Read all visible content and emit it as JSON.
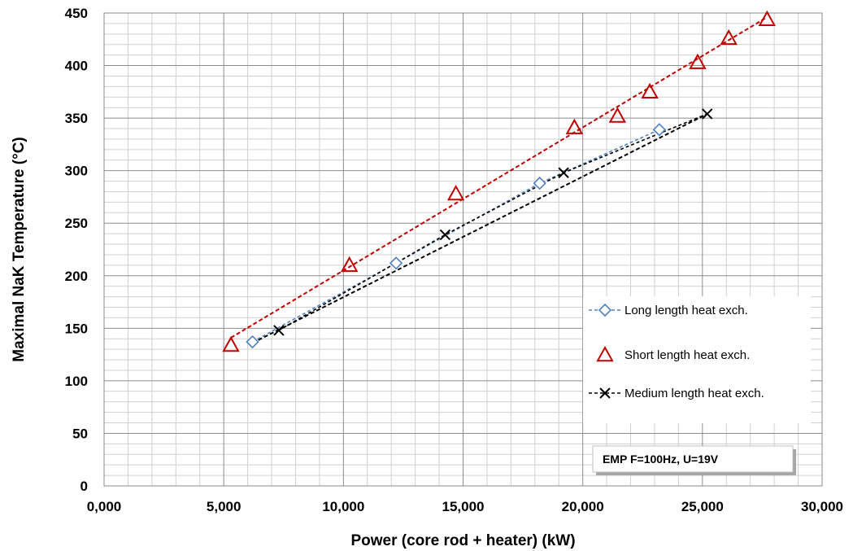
{
  "chart_data": {
    "type": "scatter",
    "xlabel": "Power (core rod + heater) (kW)",
    "ylabel": "Maximal NaK Temperature (°C)",
    "xlim": [
      0,
      30000
    ],
    "ylim": [
      0,
      450
    ],
    "x_major_step": 5000,
    "x_minor_step": 1000,
    "y_major_step": 50,
    "y_minor_step": 10,
    "x_tick_labels": [
      "0,000",
      "5,000",
      "10,000",
      "15,000",
      "20,000",
      "25,000",
      "30,000"
    ],
    "y_tick_labels": [
      "0",
      "50",
      "100",
      "150",
      "200",
      "250",
      "300",
      "350",
      "400",
      "450"
    ],
    "grid": true,
    "legend_position": "right",
    "series": [
      {
        "name": "Long length heat exch.",
        "marker": "diamond",
        "color": "#4f81bd",
        "line": "dashed",
        "x": [
          6200,
          12200,
          18200,
          23200
        ],
        "y": [
          137,
          212,
          288,
          339
        ]
      },
      {
        "name": "Short length heat exch.",
        "marker": "triangle",
        "color": "#c00000",
        "line": "none",
        "x": [
          5300,
          10250,
          14700,
          19650,
          21450,
          22800,
          24800,
          26100,
          27700
        ],
        "y": [
          134,
          210,
          278,
          341,
          352,
          375,
          403,
          426,
          444
        ]
      },
      {
        "name": "Medium length heat exch.",
        "marker": "x",
        "color": "#000000",
        "line": "dashed",
        "x": [
          7300,
          14250,
          19200,
          25200
        ],
        "y": [
          148,
          239,
          298,
          354
        ]
      }
    ],
    "trendlines": [
      {
        "series": "Short length heat exch.",
        "color": "#c00000",
        "x": [
          5300,
          27700
        ],
        "y": [
          141,
          446
        ]
      },
      {
        "series": "Medium length heat exch.",
        "color": "#000000",
        "x": [
          6200,
          25200
        ],
        "y": [
          136,
          354
        ]
      }
    ],
    "annotation": "EMP F=100Hz, U=19V"
  }
}
